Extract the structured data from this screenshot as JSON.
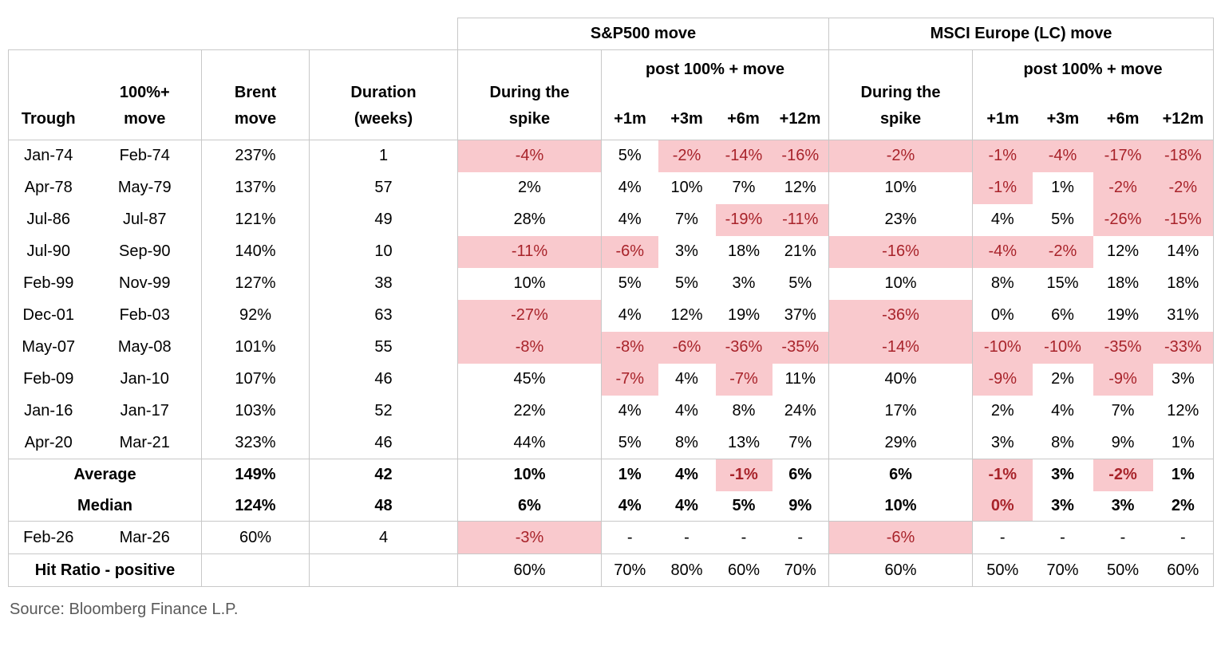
{
  "table": {
    "group_headers": {
      "sp": "S&P500 move",
      "msci": "MSCI Europe (LC) move"
    },
    "columns": {
      "trough": "Trough",
      "move": [
        "100%+",
        "move"
      ],
      "brent": [
        "Brent",
        "move"
      ],
      "duration": [
        "Duration",
        "(weeks)"
      ],
      "during": [
        "During the",
        "spike"
      ],
      "post_label": "post 100% + move",
      "post_cols": [
        "+1m",
        "+3m",
        "+6m",
        "+12m"
      ]
    },
    "rows": [
      {
        "trough": "Jan-74",
        "move": "Feb-74",
        "brent": "237%",
        "duration": "1",
        "sp": [
          "-4%",
          "5%",
          "-2%",
          "-14%",
          "-16%"
        ],
        "sp_hl": [
          1,
          0,
          1,
          1,
          1
        ],
        "msci": [
          "-2%",
          "-1%",
          "-4%",
          "-17%",
          "-18%"
        ],
        "msci_hl": [
          1,
          1,
          1,
          1,
          1
        ]
      },
      {
        "trough": "Apr-78",
        "move": "May-79",
        "brent": "137%",
        "duration": "57",
        "sp": [
          "2%",
          "4%",
          "10%",
          "7%",
          "12%"
        ],
        "sp_hl": [
          0,
          0,
          0,
          0,
          0
        ],
        "msci": [
          "10%",
          "-1%",
          "1%",
          "-2%",
          "-2%"
        ],
        "msci_hl": [
          0,
          1,
          0,
          1,
          1
        ]
      },
      {
        "trough": "Jul-86",
        "move": "Jul-87",
        "brent": "121%",
        "duration": "49",
        "sp": [
          "28%",
          "4%",
          "7%",
          "-19%",
          "-11%"
        ],
        "sp_hl": [
          0,
          0,
          0,
          1,
          1
        ],
        "msci": [
          "23%",
          "4%",
          "5%",
          "-26%",
          "-15%"
        ],
        "msci_hl": [
          0,
          0,
          0,
          1,
          1
        ]
      },
      {
        "trough": "Jul-90",
        "move": "Sep-90",
        "brent": "140%",
        "duration": "10",
        "sp": [
          "-11%",
          "-6%",
          "3%",
          "18%",
          "21%"
        ],
        "sp_hl": [
          1,
          1,
          0,
          0,
          0
        ],
        "msci": [
          "-16%",
          "-4%",
          "-2%",
          "12%",
          "14%"
        ],
        "msci_hl": [
          1,
          1,
          1,
          0,
          0
        ]
      },
      {
        "trough": "Feb-99",
        "move": "Nov-99",
        "brent": "127%",
        "duration": "38",
        "sp": [
          "10%",
          "5%",
          "5%",
          "3%",
          "5%"
        ],
        "sp_hl": [
          0,
          0,
          0,
          0,
          0
        ],
        "msci": [
          "10%",
          "8%",
          "15%",
          "18%",
          "18%"
        ],
        "msci_hl": [
          0,
          0,
          0,
          0,
          0
        ]
      },
      {
        "trough": "Dec-01",
        "move": "Feb-03",
        "brent": "92%",
        "duration": "63",
        "sp": [
          "-27%",
          "4%",
          "12%",
          "19%",
          "37%"
        ],
        "sp_hl": [
          1,
          0,
          0,
          0,
          0
        ],
        "msci": [
          "-36%",
          "0%",
          "6%",
          "19%",
          "31%"
        ],
        "msci_hl": [
          1,
          0,
          0,
          0,
          0
        ]
      },
      {
        "trough": "May-07",
        "move": "May-08",
        "brent": "101%",
        "duration": "55",
        "sp": [
          "-8%",
          "-8%",
          "-6%",
          "-36%",
          "-35%"
        ],
        "sp_hl": [
          1,
          1,
          1,
          1,
          1
        ],
        "msci": [
          "-14%",
          "-10%",
          "-10%",
          "-35%",
          "-33%"
        ],
        "msci_hl": [
          1,
          1,
          1,
          1,
          1
        ]
      },
      {
        "trough": "Feb-09",
        "move": "Jan-10",
        "brent": "107%",
        "duration": "46",
        "sp": [
          "45%",
          "-7%",
          "4%",
          "-7%",
          "11%"
        ],
        "sp_hl": [
          0,
          1,
          0,
          1,
          0
        ],
        "msci": [
          "40%",
          "-9%",
          "2%",
          "-9%",
          "3%"
        ],
        "msci_hl": [
          0,
          1,
          0,
          1,
          0
        ]
      },
      {
        "trough": "Jan-16",
        "move": "Jan-17",
        "brent": "103%",
        "duration": "52",
        "sp": [
          "22%",
          "4%",
          "4%",
          "8%",
          "24%"
        ],
        "sp_hl": [
          0,
          0,
          0,
          0,
          0
        ],
        "msci": [
          "17%",
          "2%",
          "4%",
          "7%",
          "12%"
        ],
        "msci_hl": [
          0,
          0,
          0,
          0,
          0
        ]
      },
      {
        "trough": "Apr-20",
        "move": "Mar-21",
        "brent": "323%",
        "duration": "46",
        "sp": [
          "44%",
          "5%",
          "8%",
          "13%",
          "7%"
        ],
        "sp_hl": [
          0,
          0,
          0,
          0,
          0
        ],
        "msci": [
          "29%",
          "3%",
          "8%",
          "9%",
          "1%"
        ],
        "msci_hl": [
          0,
          0,
          0,
          0,
          0
        ]
      }
    ],
    "summary_rows": [
      {
        "label": "Average",
        "brent": "149%",
        "duration": "42",
        "sp": [
          "10%",
          "1%",
          "4%",
          "-1%",
          "6%"
        ],
        "sp_hl": [
          0,
          0,
          0,
          1,
          0
        ],
        "msci": [
          "6%",
          "-1%",
          "3%",
          "-2%",
          "1%"
        ],
        "msci_hl": [
          0,
          1,
          0,
          1,
          0
        ]
      },
      {
        "label": "Median",
        "brent": "124%",
        "duration": "48",
        "sp": [
          "6%",
          "4%",
          "4%",
          "5%",
          "9%"
        ],
        "sp_hl": [
          0,
          0,
          0,
          0,
          0
        ],
        "msci": [
          "10%",
          "0%",
          "3%",
          "3%",
          "2%"
        ],
        "msci_hl": [
          0,
          1,
          0,
          0,
          0
        ]
      }
    ],
    "current_row": {
      "trough": "Feb-26",
      "move": "Mar-26",
      "brent": "60%",
      "duration": "4",
      "sp": [
        "-3%",
        "-",
        "-",
        "-",
        "-"
      ],
      "sp_hl": [
        1,
        0,
        0,
        0,
        0
      ],
      "msci": [
        "-6%",
        "-",
        "-",
        "-",
        "-"
      ],
      "msci_hl": [
        1,
        0,
        0,
        0,
        0
      ]
    },
    "hit_ratio_row": {
      "label": "Hit Ratio - positive",
      "brent": "",
      "duration": "",
      "sp": [
        "60%",
        "70%",
        "80%",
        "60%",
        "70%"
      ],
      "msci": [
        "60%",
        "50%",
        "70%",
        "50%",
        "60%"
      ]
    }
  },
  "source": "Source: Bloomberg Finance L.P.",
  "colors": {
    "highlight_bg": "#F9C9CD",
    "highlight_text": "#A8232A",
    "border": "#C8C8C8",
    "header_text": "#000000",
    "source_text": "#5A5A5A"
  }
}
